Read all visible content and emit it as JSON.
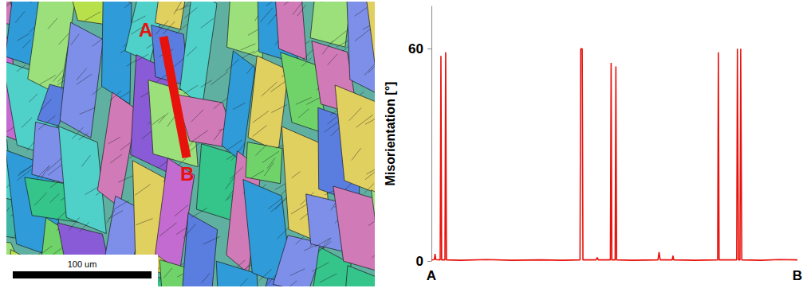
{
  "micrograph": {
    "markers": [
      "A",
      "B"
    ],
    "scale_bar": "100 um"
  },
  "chart_data": {
    "type": "line",
    "ylabel": "Misorientation [°]",
    "x": [
      0,
      0.8,
      1.0,
      1.2,
      2.4,
      2.6,
      2.8,
      3.7,
      3.9,
      4.1,
      8,
      15,
      22,
      30,
      36,
      40.6,
      40.8,
      41.2,
      41.4,
      45,
      45.3,
      45.6,
      48.9,
      49.1,
      49.3,
      50.2,
      50.4,
      50.6,
      55,
      61.9,
      62.2,
      62.5,
      65.8,
      66.0,
      66.2,
      72,
      78.2,
      78.4,
      78.6,
      83.4,
      83.6,
      83.9,
      84.3,
      84.5,
      84.8,
      90,
      95,
      100
    ],
    "values": [
      0.3,
      0.4,
      2.0,
      0.4,
      0.3,
      58,
      0.3,
      0.3,
      59,
      0.3,
      0.2,
      0.4,
      0.2,
      0.3,
      0.2,
      0.3,
      60,
      60,
      0.3,
      0.3,
      1.0,
      0.3,
      0.3,
      56,
      0.3,
      0.3,
      55,
      0.3,
      0.2,
      0.3,
      2.5,
      0.3,
      0.3,
      1.5,
      0.3,
      0.2,
      0.3,
      59,
      0.3,
      0.3,
      60,
      0.3,
      0.3,
      60,
      0.3,
      0.2,
      0.4,
      0.3
    ],
    "color": "#e8120c",
    "xlim": [
      0,
      100
    ],
    "xticks": [
      {
        "value": 0,
        "label": "A"
      },
      {
        "value": 100,
        "label": "B"
      }
    ],
    "ylim": [
      0,
      72
    ],
    "yticks": [
      0,
      60
    ],
    "grid": false
  }
}
